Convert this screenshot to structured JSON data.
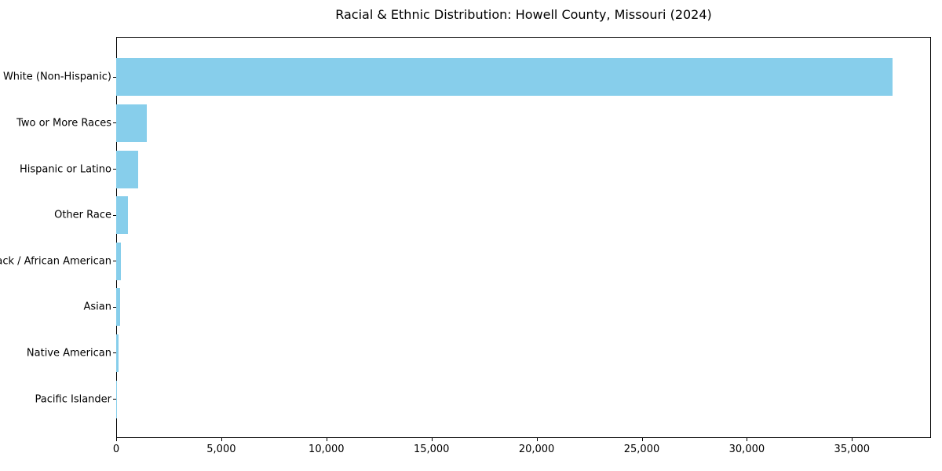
{
  "chart_data": {
    "type": "bar",
    "orientation": "horizontal",
    "title": "Racial & Ethnic Distribution: Howell County, Missouri (2024)",
    "categories": [
      "White (Non-Hispanic)",
      "Two or More Races",
      "Hispanic or Latino",
      "Other Race",
      "Black / African American",
      "Asian",
      "Native American",
      "Pacific Islander"
    ],
    "values": [
      36930,
      1450,
      1060,
      560,
      225,
      185,
      100,
      25
    ],
    "bar_color": "#87CEEB",
    "xlabel": "",
    "ylabel": "",
    "xlim": [
      0,
      38760
    ],
    "xticks": [
      0,
      5000,
      10000,
      15000,
      20000,
      25000,
      30000,
      35000
    ],
    "xtick_labels": [
      "0",
      "5,000",
      "10,000",
      "15,000",
      "20,000",
      "25,000",
      "30,000",
      "35,000"
    ],
    "grid": false,
    "legend": "none"
  }
}
